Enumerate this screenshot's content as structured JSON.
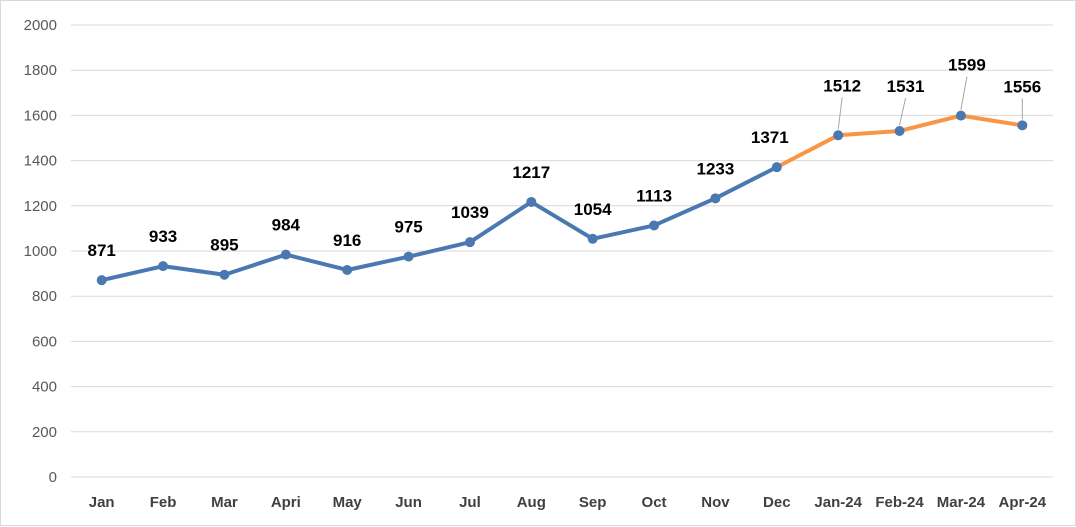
{
  "chart_data": {
    "type": "line",
    "categories": [
      "Jan",
      "Feb",
      "Mar",
      "Apri",
      "May",
      "Jun",
      "Jul",
      "Aug",
      "Sep",
      "Oct",
      "Nov",
      "Dec",
      "Jan-24",
      "Feb-24",
      "Mar-24",
      "Apr-24"
    ],
    "values": [
      871,
      933,
      895,
      984,
      916,
      975,
      1039,
      1217,
      1054,
      1113,
      1233,
      1371,
      1512,
      1531,
      1599,
      1556
    ],
    "data_labels": [
      "871",
      "933",
      "895",
      "984",
      "916",
      "975",
      "1039",
      "1217",
      "1054",
      "1113",
      "1233",
      "1371",
      "1512",
      "1531",
      "1599",
      "1556"
    ],
    "highlight_label_index": 15,
    "highlight_start_index": 11,
    "ylim": [
      0,
      2000
    ],
    "yticks": [
      0,
      200,
      400,
      600,
      800,
      1000,
      1200,
      1400,
      1600,
      1800,
      2000
    ],
    "ytick_labels": [
      "0",
      "200",
      "400",
      "600",
      "800",
      "1000",
      "1200",
      "1400",
      "1600",
      "1800",
      "2000"
    ],
    "title": "",
    "xlabel": "",
    "ylabel": "",
    "grid": true,
    "legend": "none",
    "colors": {
      "series": "#4a78b0",
      "highlight": "#f79646",
      "highlight_label": "#e00000",
      "gridline": "#d9d9d9"
    }
  }
}
